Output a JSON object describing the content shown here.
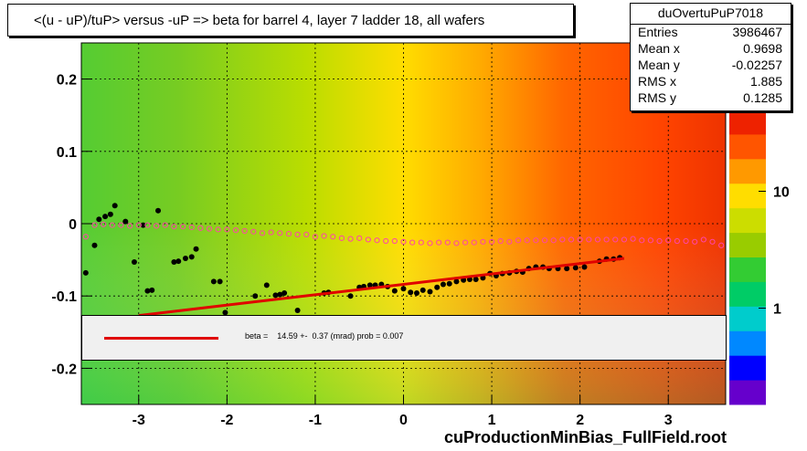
{
  "title": "<(u - uP)/tuP> versus  -uP => beta for barrel 4, layer 7 ladder 18, all wafers",
  "stats": {
    "name": "duOvertuPuP7018",
    "rows": [
      {
        "label": "Entries",
        "value": "3986467"
      },
      {
        "label": "Mean x",
        "value": "0.9698"
      },
      {
        "label": "Mean y",
        "value": "-0.02257"
      },
      {
        "label": "RMS x",
        "value": "1.885"
      },
      {
        "label": "RMS y",
        "value": "0.1285"
      }
    ]
  },
  "legend": {
    "fit_text": "beta =    14.59 +-  0.37 (mrad) prob = 0.007",
    "line_color": "#e00000"
  },
  "footer": "cuProductionMinBias_FullField.root",
  "chart_data": {
    "type": "heatmap",
    "title": "<(u - uP)/tuP> versus  -uP => beta for barrel 4, layer 7 ladder 18, all wafers",
    "xlim": [
      -3.65,
      3.65
    ],
    "ylim": [
      -0.25,
      0.25
    ],
    "x_ticks": [
      -3,
      -2,
      -1,
      0,
      1,
      2,
      3
    ],
    "y_ticks": [
      -0.2,
      -0.1,
      0,
      0.1,
      0.2
    ],
    "x_tick_labels": [
      "-3",
      "-2",
      "-1",
      "0",
      "1",
      "2",
      "3"
    ],
    "y_tick_labels": [
      "-0.2",
      "-0.1",
      "0",
      "0.1",
      "0.2"
    ],
    "color_scale": {
      "type": "log",
      "ticks": [
        1,
        10
      ],
      "tick_labels": [
        "1",
        "10"
      ],
      "colors": [
        "#6600cc",
        "#0000ff",
        "#0088ff",
        "#00cccc",
        "#00cc66",
        "#33cc33",
        "#99cc00",
        "#ccdd00",
        "#ffdd00",
        "#ff9900",
        "#ff5500",
        "#ee2200"
      ]
    },
    "grid": true,
    "series": [
      {
        "type": "scatter",
        "color": "#000000",
        "points": [
          [
            -3.6,
            -0.068
          ],
          [
            -3.5,
            -0.03
          ],
          [
            -3.45,
            0.006
          ],
          [
            -3.38,
            0.01
          ],
          [
            -3.32,
            0.013
          ],
          [
            -3.27,
            0.025
          ],
          [
            -3.15,
            0.003
          ],
          [
            -3.05,
            -0.053
          ],
          [
            -2.95,
            -0.002
          ],
          [
            -2.9,
            -0.093
          ],
          [
            -2.85,
            -0.092
          ],
          [
            -2.78,
            0.018
          ],
          [
            -2.65,
            -0.155
          ],
          [
            -2.6,
            -0.053
          ],
          [
            -2.55,
            -0.052
          ],
          [
            -2.47,
            -0.048
          ],
          [
            -2.4,
            -0.046
          ],
          [
            -2.35,
            -0.035
          ],
          [
            -2.22,
            -0.14
          ],
          [
            -2.15,
            -0.08
          ],
          [
            -2.08,
            -0.08
          ],
          [
            -2.02,
            -0.123
          ],
          [
            -1.9,
            -0.13
          ],
          [
            -1.7,
            -0.14
          ],
          [
            -1.68,
            -0.1
          ],
          [
            -1.55,
            -0.085
          ],
          [
            -1.45,
            -0.099
          ],
          [
            -1.4,
            -0.098
          ],
          [
            -1.35,
            -0.096
          ],
          [
            -1.25,
            -0.13
          ],
          [
            -1.2,
            -0.12
          ],
          [
            -0.9,
            -0.096
          ],
          [
            -0.85,
            -0.095
          ],
          [
            -0.6,
            -0.1
          ],
          [
            -0.5,
            -0.088
          ],
          [
            -0.45,
            -0.087
          ],
          [
            -0.38,
            -0.085
          ],
          [
            -0.32,
            -0.085
          ],
          [
            -0.25,
            -0.084
          ],
          [
            -0.18,
            -0.087
          ],
          [
            -0.1,
            -0.093
          ],
          [
            0.0,
            -0.09
          ],
          [
            0.08,
            -0.095
          ],
          [
            0.15,
            -0.096
          ],
          [
            0.22,
            -0.092
          ],
          [
            0.3,
            -0.094
          ],
          [
            0.38,
            -0.088
          ],
          [
            0.45,
            -0.084
          ],
          [
            0.52,
            -0.083
          ],
          [
            0.6,
            -0.08
          ],
          [
            0.68,
            -0.078
          ],
          [
            0.75,
            -0.077
          ],
          [
            0.82,
            -0.077
          ],
          [
            0.9,
            -0.075
          ],
          [
            0.98,
            -0.069
          ],
          [
            1.05,
            -0.072
          ],
          [
            1.12,
            -0.069
          ],
          [
            1.2,
            -0.068
          ],
          [
            1.28,
            -0.066
          ],
          [
            1.35,
            -0.067
          ],
          [
            1.42,
            -0.062
          ],
          [
            1.5,
            -0.06
          ],
          [
            1.58,
            -0.06
          ],
          [
            1.65,
            -0.062
          ],
          [
            1.75,
            -0.062
          ],
          [
            1.85,
            -0.062
          ],
          [
            1.95,
            -0.061
          ],
          [
            2.05,
            -0.06
          ],
          [
            2.22,
            -0.052
          ],
          [
            2.3,
            -0.049
          ],
          [
            2.38,
            -0.049
          ],
          [
            2.45,
            -0.047
          ]
        ]
      },
      {
        "type": "scatter",
        "color": "#ff44aa",
        "marker": "open-circle",
        "points": [
          [
            -3.6,
            -0.018
          ],
          [
            -3.5,
            -0.002
          ],
          [
            -3.4,
            -0.001
          ],
          [
            -3.3,
            -0.002
          ],
          [
            -3.2,
            -0.002
          ],
          [
            -3.1,
            -0.003
          ],
          [
            -3.0,
            -0.002
          ],
          [
            -2.9,
            -0.002
          ],
          [
            -2.8,
            -0.003
          ],
          [
            -2.7,
            -0.002
          ],
          [
            -2.6,
            -0.004
          ],
          [
            -2.5,
            -0.004
          ],
          [
            -2.4,
            -0.005
          ],
          [
            -2.3,
            -0.006
          ],
          [
            -2.2,
            -0.007
          ],
          [
            -2.1,
            -0.008
          ],
          [
            -2.0,
            -0.008
          ],
          [
            -1.9,
            -0.009
          ],
          [
            -1.8,
            -0.01
          ],
          [
            -1.7,
            -0.011
          ],
          [
            -1.6,
            -0.013
          ],
          [
            -1.5,
            -0.012
          ],
          [
            -1.4,
            -0.013
          ],
          [
            -1.3,
            -0.014
          ],
          [
            -1.2,
            -0.015
          ],
          [
            -1.1,
            -0.015
          ],
          [
            -1.0,
            -0.018
          ],
          [
            -0.9,
            -0.017
          ],
          [
            -0.8,
            -0.018
          ],
          [
            -0.7,
            -0.02
          ],
          [
            -0.6,
            -0.021
          ],
          [
            -0.5,
            -0.02
          ],
          [
            -0.4,
            -0.022
          ],
          [
            -0.3,
            -0.023
          ],
          [
            -0.2,
            -0.024
          ],
          [
            -0.1,
            -0.024
          ],
          [
            0.0,
            -0.025
          ],
          [
            0.1,
            -0.026
          ],
          [
            0.2,
            -0.026
          ],
          [
            0.3,
            -0.027
          ],
          [
            0.4,
            -0.026
          ],
          [
            0.5,
            -0.026
          ],
          [
            0.6,
            -0.027
          ],
          [
            0.7,
            -0.026
          ],
          [
            0.8,
            -0.026
          ],
          [
            0.9,
            -0.025
          ],
          [
            1.0,
            -0.025
          ],
          [
            1.1,
            -0.024
          ],
          [
            1.2,
            -0.025
          ],
          [
            1.3,
            -0.023
          ],
          [
            1.4,
            -0.023
          ],
          [
            1.5,
            -0.023
          ],
          [
            1.6,
            -0.023
          ],
          [
            1.7,
            -0.023
          ],
          [
            1.8,
            -0.022
          ],
          [
            1.9,
            -0.022
          ],
          [
            2.0,
            -0.022
          ],
          [
            2.1,
            -0.022
          ],
          [
            2.2,
            -0.022
          ],
          [
            2.3,
            -0.022
          ],
          [
            2.4,
            -0.022
          ],
          [
            2.5,
            -0.022
          ],
          [
            2.6,
            -0.021
          ],
          [
            2.7,
            -0.023
          ],
          [
            2.8,
            -0.023
          ],
          [
            2.9,
            -0.024
          ],
          [
            3.0,
            -0.023
          ],
          [
            3.1,
            -0.024
          ],
          [
            3.2,
            -0.024
          ],
          [
            3.3,
            -0.025
          ],
          [
            3.4,
            -0.022
          ],
          [
            3.5,
            -0.025
          ],
          [
            3.6,
            -0.03
          ]
        ]
      },
      {
        "type": "line",
        "color": "#e00000",
        "points": [
          [
            -3.0,
            -0.127
          ],
          [
            2.5,
            -0.048
          ]
        ]
      }
    ]
  }
}
